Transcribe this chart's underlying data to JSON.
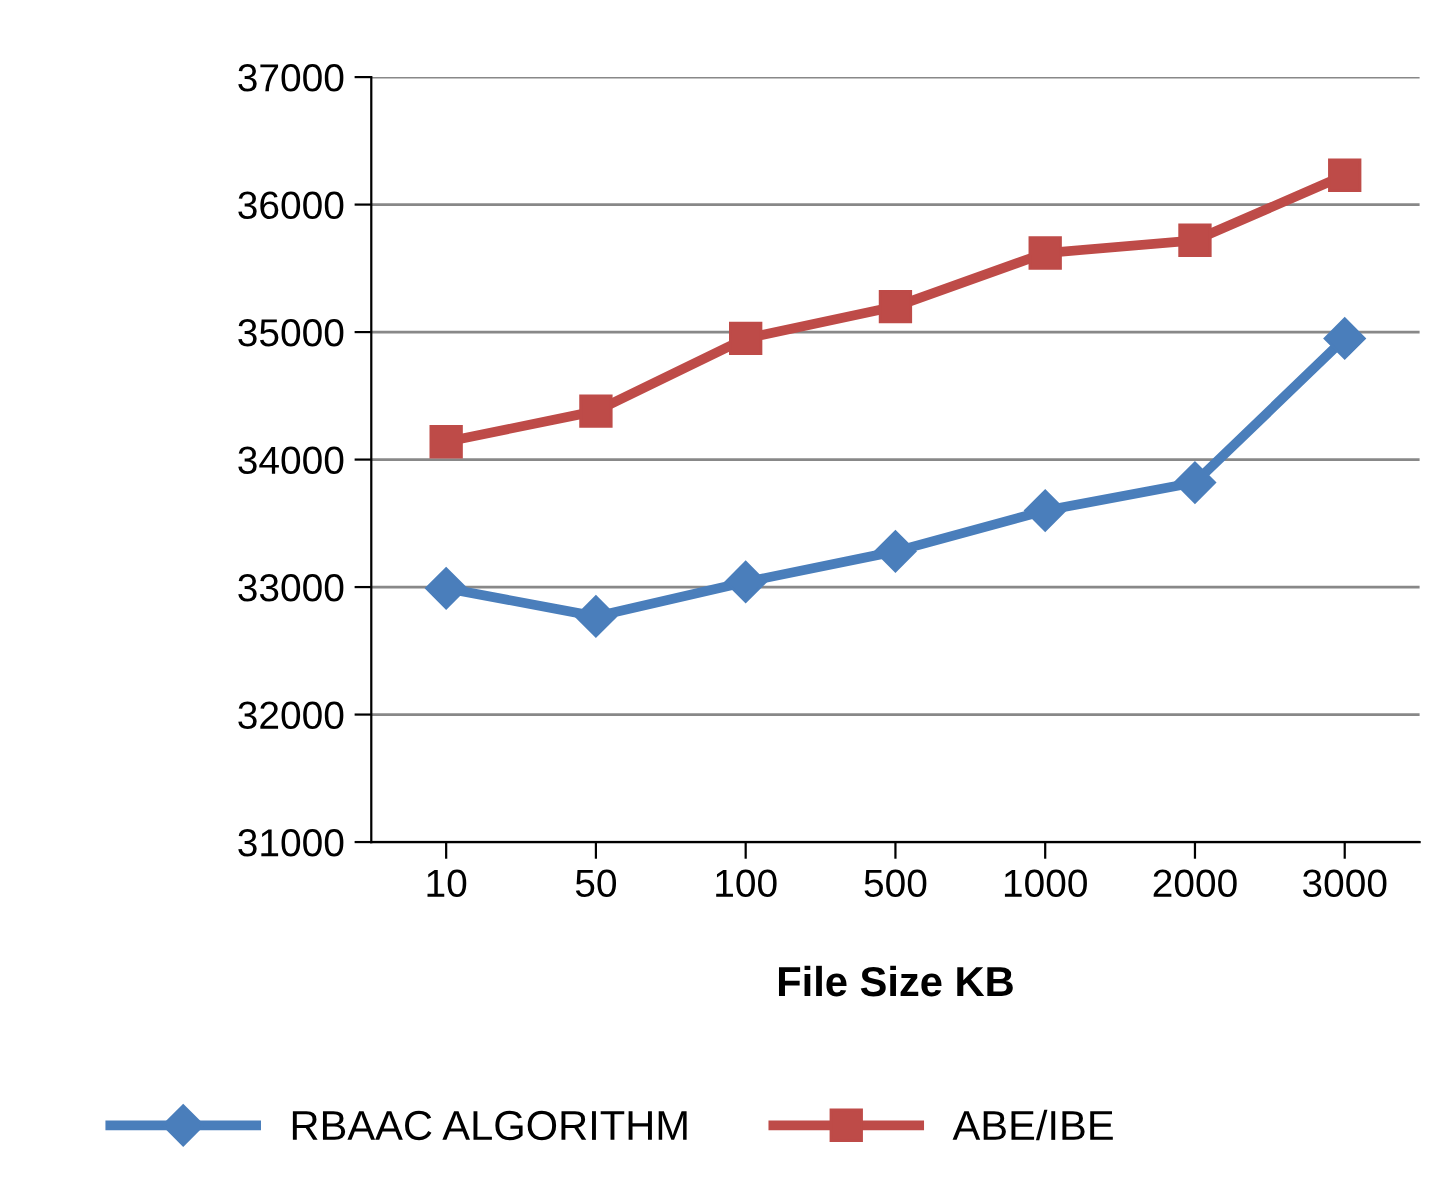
{
  "chart_data": {
    "type": "line",
    "xlabel": "File Size KB",
    "categories": [
      "10",
      "50",
      "100",
      "500",
      "1000",
      "2000",
      "3000"
    ],
    "series": [
      {
        "name": "RBAAC ALGORITHM",
        "color": "#4a7ebb",
        "marker": "diamond",
        "values": [
          32990,
          32770,
          33040,
          33280,
          33600,
          33820,
          34950
        ]
      },
      {
        "name": "ABE/IBE",
        "color": "#be4b48",
        "marker": "square",
        "values": [
          34140,
          34380,
          34950,
          35200,
          35620,
          35720,
          36230
        ]
      }
    ],
    "ylim": [
      31000,
      37000
    ],
    "yticks": [
      31000,
      32000,
      33000,
      34000,
      35000,
      36000,
      37000
    ],
    "grid": "y",
    "legend": "bottom"
  }
}
